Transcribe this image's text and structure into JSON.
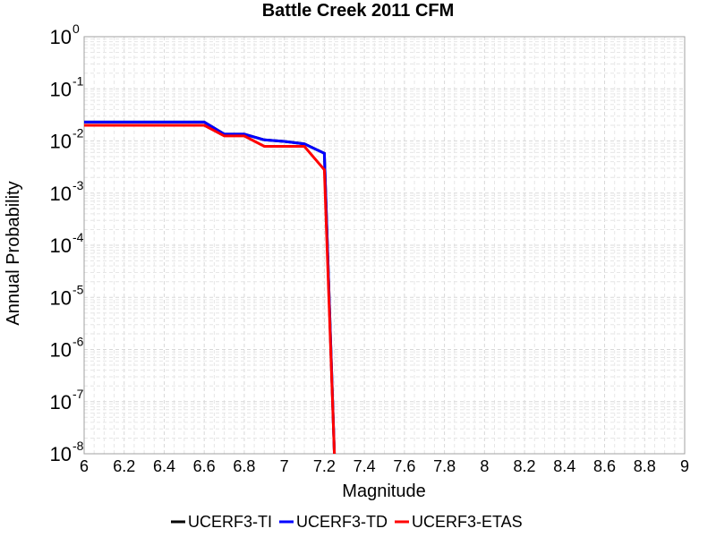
{
  "chart_data": {
    "type": "line",
    "title": "Battle Creek 2011 CFM",
    "xlabel": "Magnitude",
    "ylabel": "Annual Probability",
    "xlim": [
      6,
      9
    ],
    "ylim": [
      1e-08,
      1
    ],
    "yscale": "log",
    "grid": true,
    "legend_position": "bottom",
    "x_ticks": [
      "6",
      "6.2",
      "6.4",
      "6.6",
      "6.8",
      "7",
      "7.2",
      "7.4",
      "7.6",
      "7.8",
      "8",
      "8.2",
      "8.4",
      "8.6",
      "8.8",
      "9"
    ],
    "y_ticks": [
      {
        "base": "10",
        "exp": "0"
      },
      {
        "base": "10",
        "exp": "-1"
      },
      {
        "base": "10",
        "exp": "-2"
      },
      {
        "base": "10",
        "exp": "-3"
      },
      {
        "base": "10",
        "exp": "-4"
      },
      {
        "base": "10",
        "exp": "-5"
      },
      {
        "base": "10",
        "exp": "-6"
      },
      {
        "base": "10",
        "exp": "-7"
      },
      {
        "base": "10",
        "exp": "-8"
      }
    ],
    "series": [
      {
        "name": "UCERF3-TI",
        "color": "#000000",
        "x": [
          6.0,
          6.1,
          6.2,
          6.3,
          6.4,
          6.5,
          6.6,
          6.7,
          6.8,
          6.9,
          7.0,
          7.1,
          7.2,
          7.25
        ],
        "y": [
          0.023,
          0.023,
          0.023,
          0.023,
          0.023,
          0.023,
          0.023,
          0.0135,
          0.0135,
          0.0105,
          0.0098,
          0.0088,
          0.0058,
          1e-08
        ]
      },
      {
        "name": "UCERF3-TD",
        "color": "#0000ff",
        "x": [
          6.0,
          6.1,
          6.2,
          6.3,
          6.4,
          6.5,
          6.6,
          6.7,
          6.8,
          6.9,
          7.0,
          7.1,
          7.2,
          7.25
        ],
        "y": [
          0.023,
          0.023,
          0.023,
          0.023,
          0.023,
          0.023,
          0.023,
          0.0135,
          0.0135,
          0.0105,
          0.0098,
          0.0088,
          0.0058,
          1e-08
        ]
      },
      {
        "name": "UCERF3-ETAS",
        "color": "#ff0000",
        "x": [
          6.0,
          6.1,
          6.2,
          6.3,
          6.4,
          6.5,
          6.6,
          6.7,
          6.8,
          6.9,
          7.0,
          7.1,
          7.2,
          7.25
        ],
        "y": [
          0.02,
          0.02,
          0.02,
          0.02,
          0.02,
          0.02,
          0.02,
          0.0125,
          0.0125,
          0.0079,
          0.0079,
          0.0079,
          0.0028,
          1e-08
        ]
      }
    ]
  }
}
